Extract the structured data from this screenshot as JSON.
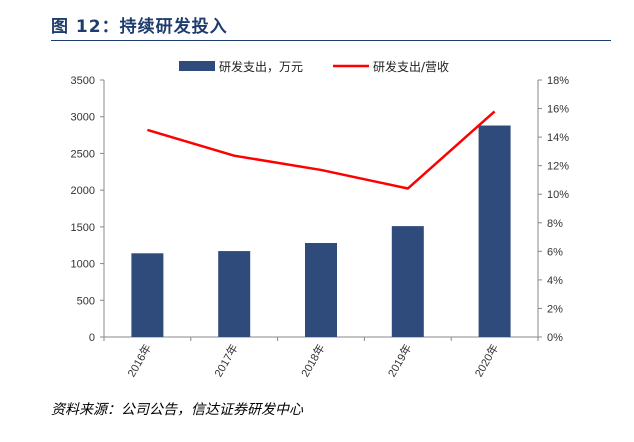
{
  "header": {
    "title": "图 12：持续研发投入"
  },
  "footer": {
    "source": "资料来源：公司公告，信达证券研发中心"
  },
  "colors": {
    "bar": "#2f4b7c",
    "line": "#ff0000",
    "title": "#1f3c6e"
  },
  "chart_data": {
    "type": "bar",
    "categories": [
      "2016年",
      "2017年",
      "2018年",
      "2019年",
      "2020年"
    ],
    "series": [
      {
        "name": "研发支出，万元",
        "type": "bar",
        "axis": "left",
        "values": [
          1140,
          1170,
          1280,
          1510,
          2880
        ]
      },
      {
        "name": "研发支出/营收",
        "type": "line",
        "axis": "right",
        "values": [
          0.145,
          0.127,
          0.117,
          0.104,
          0.158
        ]
      }
    ],
    "left_axis": {
      "min": 0,
      "max": 3500,
      "ticks": [
        "0",
        "500",
        "1000",
        "1500",
        "2000",
        "2500",
        "3000",
        "3500"
      ]
    },
    "right_axis": {
      "min": 0,
      "max": 0.18,
      "ticks": [
        "0%",
        "2%",
        "4%",
        "6%",
        "8%",
        "10%",
        "12%",
        "14%",
        "16%",
        "18%"
      ]
    },
    "legend_position": "top",
    "grid": false
  }
}
